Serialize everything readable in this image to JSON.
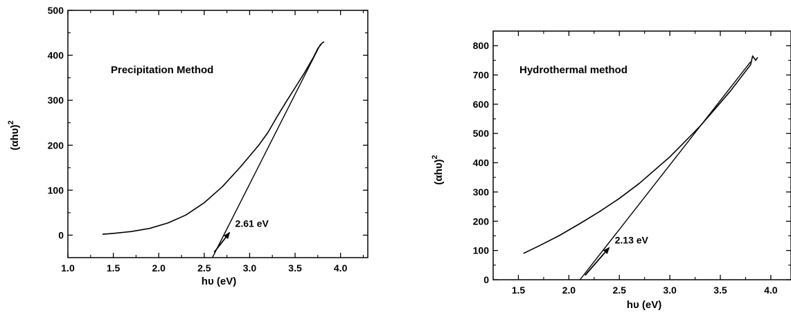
{
  "chart_data": [
    {
      "type": "line",
      "title": "Precipitation Method",
      "xlabel": "hυ (eV)",
      "ylabel": "(αhυ)",
      "ylabel_sup": "2",
      "xlim": [
        1.0,
        4.3
      ],
      "ylim": [
        -50,
        500
      ],
      "xticks": [
        1.0,
        1.5,
        2.0,
        2.5,
        3.0,
        3.5,
        4.0
      ],
      "xtick_labels": [
        "1.0",
        "1.5",
        "2.0",
        "2.5",
        "3.0",
        "3.5",
        "4.0"
      ],
      "yticks": [
        0,
        100,
        200,
        300,
        400,
        500
      ],
      "ytick_labels": [
        "0",
        "100",
        "200",
        "300",
        "400",
        "500"
      ],
      "series": [
        {
          "x": [
            1.38,
            1.5,
            1.7,
            1.9,
            2.1,
            2.3,
            2.5,
            2.7,
            2.9,
            3.0,
            3.1,
            3.2,
            3.3,
            3.4,
            3.5,
            3.6,
            3.7,
            3.75,
            3.8,
            3.82
          ],
          "y": [
            2,
            4,
            8,
            15,
            27,
            45,
            72,
            108,
            152,
            176,
            200,
            228,
            263,
            296,
            328,
            360,
            395,
            415,
            428,
            430
          ]
        }
      ],
      "tangent": {
        "x": [
          2.59,
          3.78
        ],
        "y": [
          -50,
          425
        ]
      },
      "annotation": {
        "text": "2.61 eV",
        "arrow_from": [
          2.61,
          -38
        ],
        "arrow_to": [
          2.78,
          6
        ]
      }
    },
    {
      "type": "line",
      "title": "Hydrothermal method",
      "xlabel": "hυ (eV)",
      "ylabel": "(αhυ)",
      "ylabel_sup": "2",
      "xlim": [
        1.25,
        4.2
      ],
      "ylim": [
        0,
        850
      ],
      "xticks": [
        1.5,
        2.0,
        2.5,
        3.0,
        3.5,
        4.0
      ],
      "xtick_labels": [
        "1.5",
        "2.0",
        "2.5",
        "3.0",
        "3.5",
        "4.0"
      ],
      "yticks": [
        0,
        100,
        200,
        300,
        400,
        500,
        600,
        700,
        800
      ],
      "ytick_labels": [
        "0",
        "100",
        "200",
        "300",
        "400",
        "500",
        "600",
        "700",
        "800"
      ],
      "series": [
        {
          "x": [
            1.55,
            1.7,
            1.9,
            2.1,
            2.3,
            2.5,
            2.7,
            2.9,
            3.0,
            3.1,
            3.2,
            3.3,
            3.4,
            3.5,
            3.6,
            3.7,
            3.8,
            3.82,
            3.85,
            3.87
          ],
          "y": [
            90,
            115,
            150,
            190,
            232,
            278,
            330,
            390,
            420,
            455,
            490,
            525,
            565,
            605,
            645,
            690,
            735,
            765,
            750,
            760
          ]
        }
      ],
      "tangent": {
        "x": [
          2.11,
          3.8
        ],
        "y": [
          0,
          745
        ]
      },
      "annotation": {
        "text": "2.13 eV",
        "arrow_from": [
          2.16,
          15
        ],
        "arrow_to": [
          2.4,
          110
        ]
      }
    }
  ]
}
